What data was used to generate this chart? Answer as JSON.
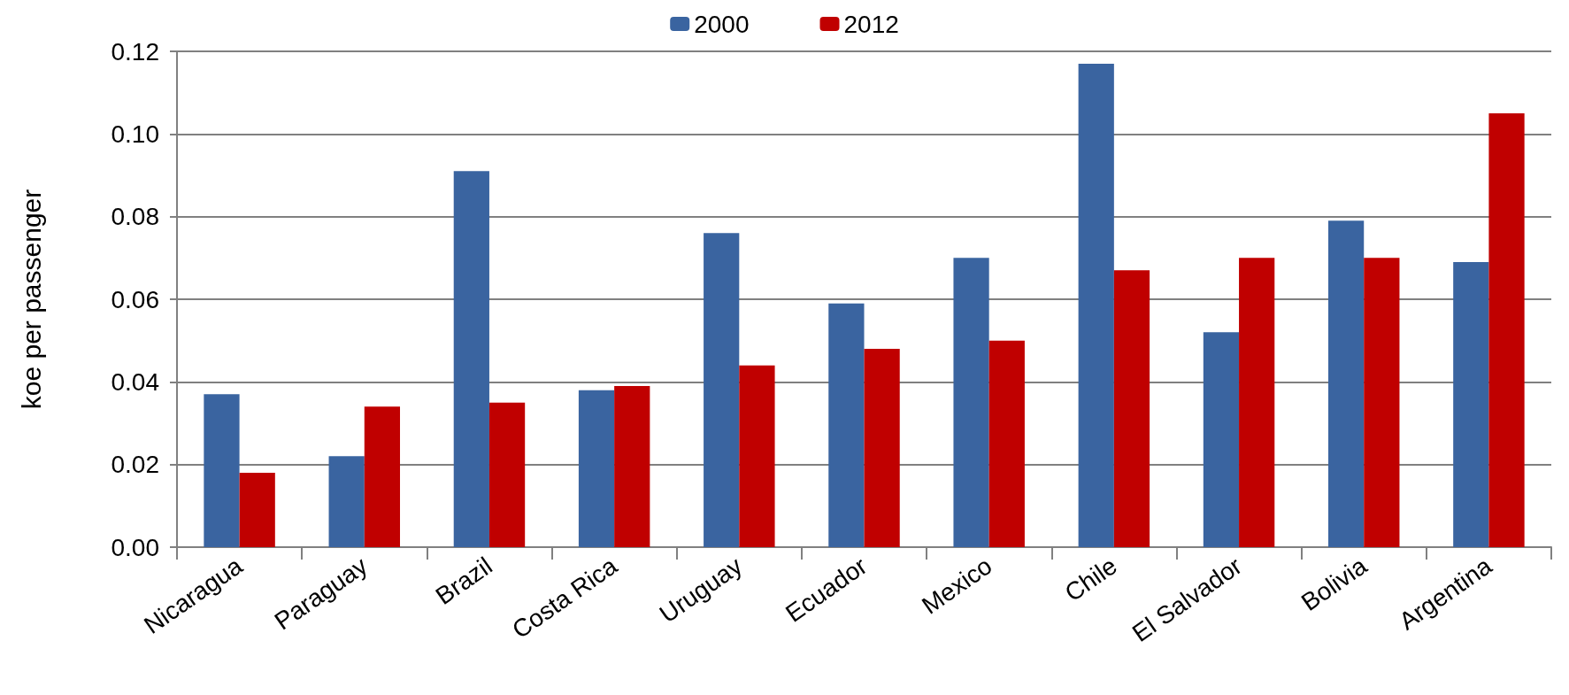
{
  "chart_data": {
    "type": "bar",
    "ylabel": "koe per passenger",
    "categories": [
      "Nicaragua",
      "Paraguay",
      "Brazil",
      "Costa Rica",
      "Uruguay",
      "Ecuador",
      "Mexico",
      "Chile",
      "El Salvador",
      "Bolivia",
      "Argentina"
    ],
    "series": [
      {
        "name": "2000",
        "color": "#3a64a0",
        "values": [
          0.037,
          0.022,
          0.091,
          0.038,
          0.076,
          0.059,
          0.07,
          0.117,
          0.052,
          0.079,
          0.069
        ]
      },
      {
        "name": "2012",
        "color": "#c00000",
        "values": [
          0.018,
          0.034,
          0.035,
          0.039,
          0.044,
          0.048,
          0.05,
          0.067,
          0.07,
          0.07,
          0.105
        ]
      }
    ],
    "ylim": [
      0,
      0.12
    ],
    "yticks": [
      {
        "value": 0,
        "label": "0.00"
      },
      {
        "value": 0.02,
        "label": "0.02"
      },
      {
        "value": 0.04,
        "label": "0.04"
      },
      {
        "value": 0.06,
        "label": "0.06"
      },
      {
        "value": 0.08,
        "label": "0.08"
      },
      {
        "value": 0.1,
        "label": "0.10"
      },
      {
        "value": 0.12,
        "label": "0.12"
      }
    ],
    "grid": "y",
    "legend": "top"
  }
}
